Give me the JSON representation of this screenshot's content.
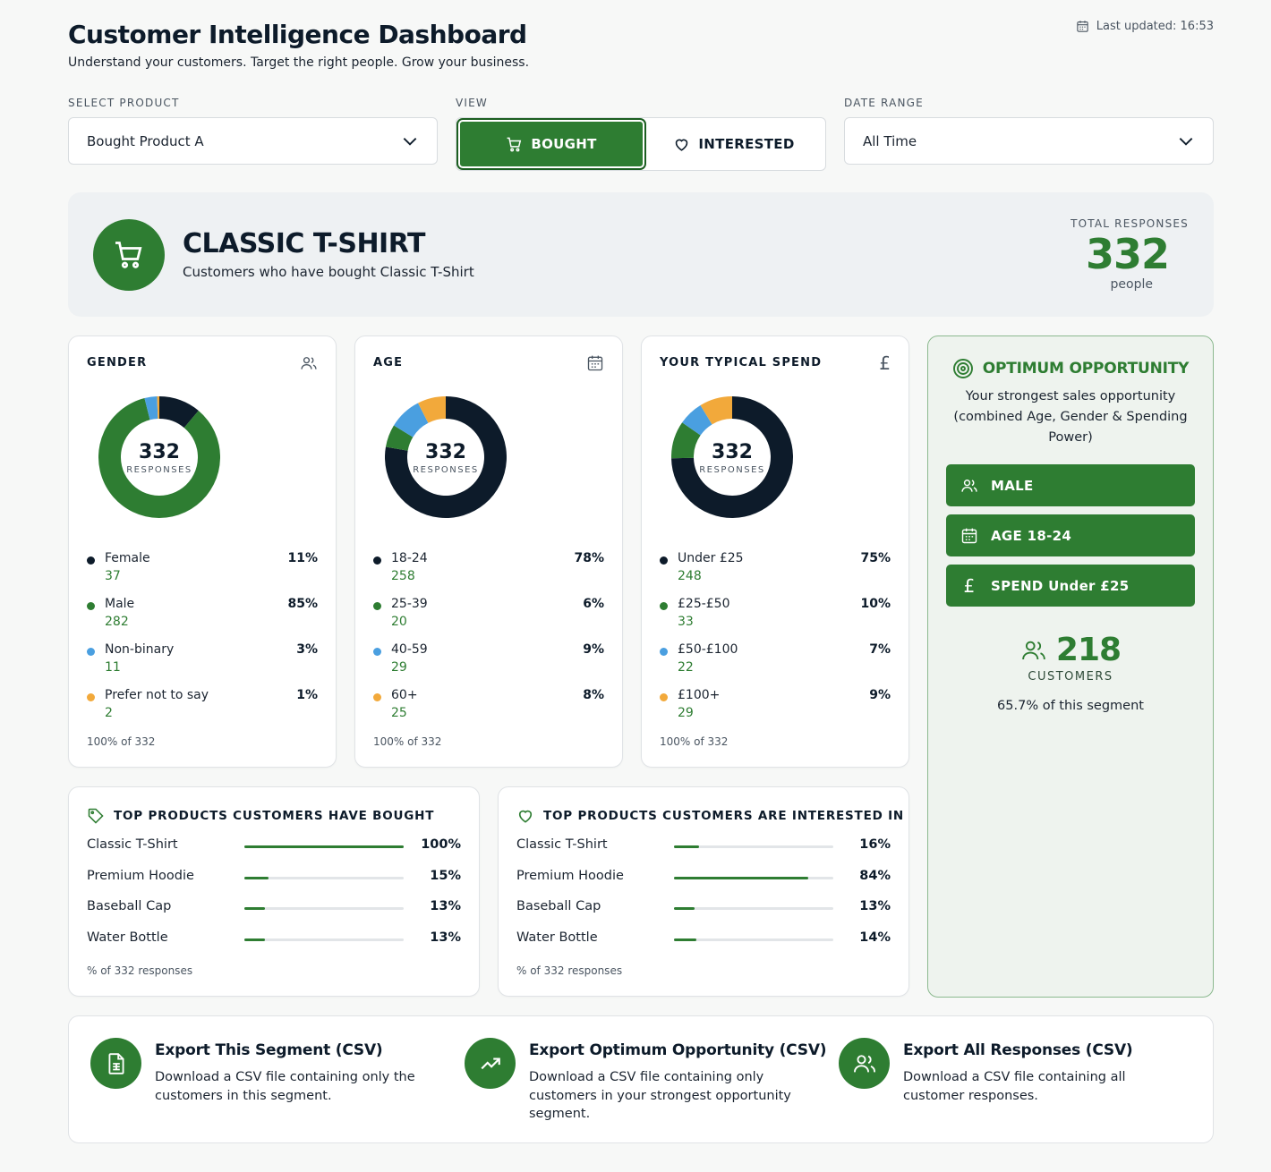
{
  "header": {
    "title": "Customer Intelligence Dashboard",
    "subtitle": "Understand your customers. Target the right people. Grow your business.",
    "last_updated": "Last updated: 16:53"
  },
  "filters": {
    "product_label": "SELECT PRODUCT",
    "product_value": "Bought Product A",
    "view_label": "VIEW",
    "view_bought": "BOUGHT",
    "view_interested": "INTERESTED",
    "view_selected": "BOUGHT",
    "date_label": "DATE RANGE",
    "date_value": "All Time"
  },
  "hero": {
    "title": "CLASSIC T-SHIRT",
    "subtitle": "Customers who have bought Classic T-Shirt",
    "total_label": "TOTAL RESPONSES",
    "total_value": "332",
    "total_unit": "people"
  },
  "colors": {
    "navy": "#0d1b2a",
    "green": "#2e7d32",
    "blue": "#4a9fe0",
    "orange": "#f2a93b"
  },
  "breakdowns": [
    {
      "title": "GENDER",
      "icon": "users-icon",
      "center_value": "332",
      "center_label": "RESPONSES",
      "footer": "100% of 332",
      "items": [
        {
          "name": "Female",
          "count": "37",
          "pct": "11%",
          "value": 37,
          "color": "#0d1b2a"
        },
        {
          "name": "Male",
          "count": "282",
          "pct": "85%",
          "value": 282,
          "color": "#2e7d32"
        },
        {
          "name": "Non-binary",
          "count": "11",
          "pct": "3%",
          "value": 11,
          "color": "#4a9fe0"
        },
        {
          "name": "Prefer not to say",
          "count": "2",
          "pct": "1%",
          "value": 2,
          "color": "#f2a93b"
        }
      ]
    },
    {
      "title": "AGE",
      "icon": "calendar-icon",
      "center_value": "332",
      "center_label": "RESPONSES",
      "footer": "100% of 332",
      "items": [
        {
          "name": "18-24",
          "count": "258",
          "pct": "78%",
          "value": 258,
          "color": "#0d1b2a"
        },
        {
          "name": "25-39",
          "count": "20",
          "pct": "6%",
          "value": 20,
          "color": "#2e7d32"
        },
        {
          "name": "40-59",
          "count": "29",
          "pct": "9%",
          "value": 29,
          "color": "#4a9fe0"
        },
        {
          "name": "60+",
          "count": "25",
          "pct": "8%",
          "value": 25,
          "color": "#f2a93b"
        }
      ]
    },
    {
      "title": "YOUR TYPICAL SPEND",
      "icon": "pound-icon",
      "center_value": "332",
      "center_label": "RESPONSES",
      "footer": "100% of 332",
      "items": [
        {
          "name": "Under £25",
          "count": "248",
          "pct": "75%",
          "value": 248,
          "color": "#0d1b2a"
        },
        {
          "name": "£25-£50",
          "count": "33",
          "pct": "10%",
          "value": 33,
          "color": "#2e7d32"
        },
        {
          "name": "£50-£100",
          "count": "22",
          "pct": "7%",
          "value": 22,
          "color": "#4a9fe0"
        },
        {
          "name": "£100+",
          "count": "29",
          "pct": "9%",
          "value": 29,
          "color": "#f2a93b"
        }
      ]
    }
  ],
  "opportunity": {
    "title": "OPTIMUM OPPORTUNITY",
    "description": "Your strongest sales opportunity (combined Age, Gender & Spending Power)",
    "chips": [
      {
        "label": "MALE",
        "icon": "users-icon"
      },
      {
        "label": "AGE 18-24",
        "icon": "calendar-icon"
      },
      {
        "label": "SPEND Under £25",
        "icon": "pound-icon"
      }
    ],
    "customers_value": "218",
    "customers_label": "CUSTOMERS",
    "segment_text": "65.7% of this segment"
  },
  "top_bought": {
    "title": "TOP PRODUCTS CUSTOMERS HAVE BOUGHT",
    "footer": "% of 332 responses",
    "rows": [
      {
        "name": "Classic T-Shirt",
        "pct": "100%",
        "fraction": 1.0
      },
      {
        "name": "Premium Hoodie",
        "pct": "15%",
        "fraction": 0.15
      },
      {
        "name": "Baseball Cap",
        "pct": "13%",
        "fraction": 0.13
      },
      {
        "name": "Water Bottle",
        "pct": "13%",
        "fraction": 0.13
      }
    ]
  },
  "top_interested": {
    "title": "TOP PRODUCTS CUSTOMERS ARE INTERESTED IN",
    "footer": "% of 332 responses",
    "rows": [
      {
        "name": "Classic T-Shirt",
        "pct": "16%",
        "fraction": 0.16
      },
      {
        "name": "Premium Hoodie",
        "pct": "84%",
        "fraction": 0.84
      },
      {
        "name": "Baseball Cap",
        "pct": "13%",
        "fraction": 0.13
      },
      {
        "name": "Water Bottle",
        "pct": "14%",
        "fraction": 0.14
      }
    ]
  },
  "exports": [
    {
      "title": "Export This Segment (CSV)",
      "description": "Download a CSV file containing only the customers in this segment.",
      "icon": "file-csv-icon"
    },
    {
      "title": "Export Optimum Opportunity (CSV)",
      "description": "Download a CSV file containing only customers in your strongest opportunity segment.",
      "icon": "trending-up-icon"
    },
    {
      "title": "Export All Responses (CSV)",
      "description": "Download a CSV file containing all customer responses.",
      "icon": "users-icon"
    }
  ]
}
